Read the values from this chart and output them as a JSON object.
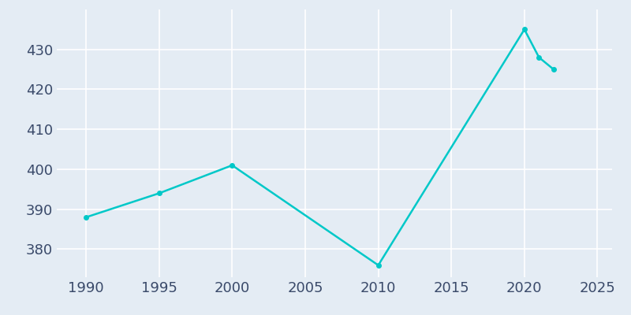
{
  "years": [
    1990,
    1995,
    2000,
    2010,
    2020,
    2021,
    2022
  ],
  "population": [
    388,
    394,
    401,
    376,
    435,
    428,
    425
  ],
  "line_color": "#00C8C8",
  "background_color": "#E4ECF4",
  "grid_color": "#FFFFFF",
  "text_color": "#3A4A6A",
  "xlim": [
    1988,
    2026
  ],
  "ylim": [
    373,
    440
  ],
  "xticks": [
    1990,
    1995,
    2000,
    2005,
    2010,
    2015,
    2020,
    2025
  ],
  "yticks": [
    380,
    390,
    400,
    410,
    420,
    430
  ],
  "figsize": [
    8.0,
    4.0
  ],
  "dpi": 100,
  "line_width": 1.8,
  "marker_size": 4,
  "tick_labelsize": 13
}
